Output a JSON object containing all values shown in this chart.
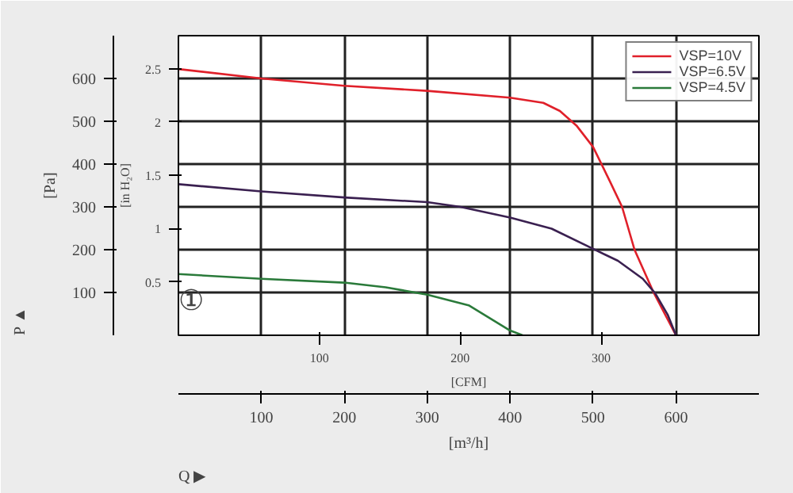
{
  "chart_data": {
    "type": "line",
    "xlabel": "[m³/h]",
    "ylabel": "[Pa]",
    "x2label": "[CFM]",
    "y2label": "[in H₂O]",
    "xlim": [
      0,
      700
    ],
    "xticks": [
      100,
      200,
      300,
      400,
      500,
      600
    ],
    "ylim": [
      0,
      700
    ],
    "yticks": [
      100,
      200,
      300,
      400,
      500,
      600
    ],
    "x2lim": [
      0,
      412
    ],
    "x2ticks": [
      100,
      200,
      300
    ],
    "y2lim": [
      0,
      2.81
    ],
    "y2ticks": [
      0.5,
      1.0,
      1.5,
      2.0,
      2.5
    ],
    "grid": true,
    "legend": "top right",
    "line_style": "solid",
    "marker": "none",
    "annotations": [
      "P ▲",
      "Q ▶",
      "①"
    ],
    "series": [
      {
        "name": "VSP=10V",
        "color": "#e0202a",
        "x": [
          0,
          100,
          200,
          300,
          400,
          440,
          460,
          480,
          500,
          520,
          535,
          550,
          573,
          600
        ],
        "values": [
          622,
          600,
          583,
          571,
          555,
          543,
          524,
          490,
          440,
          361,
          300,
          200,
          100,
          0
        ]
      },
      {
        "name": "VSP=6.5V",
        "color": "#3a2050",
        "x": [
          0,
          100,
          200,
          300,
          340,
          400,
          450,
          500,
          530,
          560,
          575,
          590,
          600
        ],
        "values": [
          353,
          336,
          322,
          311,
          300,
          275,
          249,
          202,
          174,
          132,
          98,
          48,
          0
        ]
      },
      {
        "name": "VSP=4.5V",
        "color": "#2a7a3a",
        "x": [
          0,
          100,
          200,
          250,
          300,
          350,
          400,
          415
        ],
        "values": [
          143,
          132,
          123,
          112,
          95,
          70,
          11,
          0
        ]
      }
    ]
  }
}
